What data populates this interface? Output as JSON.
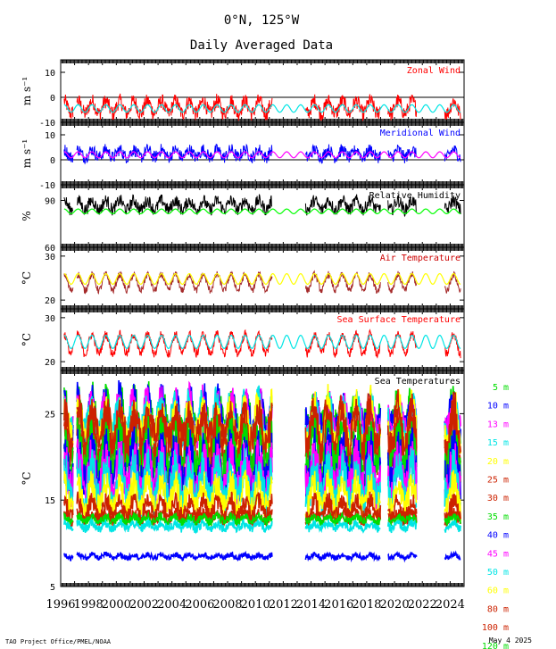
{
  "header": {
    "title": "0°N, 125°W",
    "subtitle": "Daily Averaged Data"
  },
  "footer": {
    "credit": "TAO Project Office/PMEL/NOAA",
    "date": "May  4 2025"
  },
  "chart_data": [
    {
      "type": "line",
      "title": "Zonal Wind",
      "ylabel": "m s⁻¹",
      "yticks": [
        -10,
        0,
        10
      ],
      "ylim": [
        -10,
        15
      ],
      "zero_line": true,
      "series": [
        {
          "color": "#ff0000",
          "role": "observed",
          "base": -4,
          "amp": 2.5,
          "noise": 3
        },
        {
          "color": "#00e5e5",
          "role": "climatology",
          "base": -4.5,
          "amp": 1.5
        }
      ]
    },
    {
      "type": "line",
      "title": "Meridional Wind",
      "ylabel": "m s⁻¹",
      "yticks": [
        -10,
        0,
        10
      ],
      "ylim": [
        -10,
        15
      ],
      "zero_line": true,
      "series": [
        {
          "color": "#0000ff",
          "role": "observed",
          "base": 2.5,
          "amp": 1.5,
          "noise": 2.5
        },
        {
          "color": "#ff00ff",
          "role": "climatology",
          "base": 2,
          "amp": 1.2
        }
      ]
    },
    {
      "type": "line",
      "title": "Relative Humidity",
      "ylabel": "%",
      "yticks": [
        60,
        90
      ],
      "ylim": [
        60,
        100
      ],
      "series": [
        {
          "color": "#000000",
          "role": "observed",
          "base": 87,
          "amp": 3,
          "noise": 4
        },
        {
          "color": "#00ff00",
          "role": "climatology",
          "base": 83,
          "amp": 1.5
        }
      ]
    },
    {
      "type": "line",
      "title": "Air Temperature",
      "ylabel": "°C",
      "yticks": [
        20,
        30
      ],
      "ylim": [
        18,
        32
      ],
      "series": [
        {
          "color": "#a52a2a",
          "role": "observed",
          "base": 24,
          "amp": 1.8,
          "noise": 0.8
        },
        {
          "color": "#ffff00",
          "role": "climatology",
          "base": 24.8,
          "amp": 1.2
        }
      ]
    },
    {
      "type": "line",
      "title": "Sea Surface Temperature",
      "ylabel": "°C",
      "yticks": [
        20,
        30
      ],
      "ylim": [
        18,
        32
      ],
      "series": [
        {
          "color": "#ff0000",
          "role": "observed",
          "base": 24,
          "amp": 2.2,
          "noise": 1
        },
        {
          "color": "#00e5e5",
          "role": "climatology",
          "base": 24.5,
          "amp": 1.5
        }
      ]
    },
    {
      "type": "line",
      "title": "Sea Temperatures",
      "ylabel": "°C",
      "yticks": [
        5,
        15,
        25
      ],
      "ylim": [
        5,
        30
      ],
      "x": {
        "start": 1996,
        "end": 2025,
        "tick_labels": [
          "1996",
          "1998",
          "2000",
          "2002",
          "2004",
          "2006",
          "2008",
          "2010",
          "2012",
          "2014",
          "2016",
          "2018",
          "2020",
          "2022",
          "2024"
        ]
      },
      "legend": {
        "placement": "right"
      },
      "series": [
        {
          "name": "5 m",
          "color": "#00dd00",
          "base": 24.5,
          "amp": 1.8,
          "noise": 1.5
        },
        {
          "name": "10 m",
          "color": "#0000ff",
          "base": 24.3,
          "amp": 1.8,
          "noise": 1.5
        },
        {
          "name": "13 m",
          "color": "#ff00ff",
          "base": 24.0,
          "amp": 1.8,
          "noise": 1.5
        },
        {
          "name": "15 m",
          "color": "#00e5e5",
          "base": 23.8,
          "amp": 1.8,
          "noise": 1.5
        },
        {
          "name": "20 m",
          "color": "#ffff00",
          "base": 23.5,
          "amp": 2.0,
          "noise": 1.6
        },
        {
          "name": "25 m",
          "color": "#cc2200",
          "base": 23.0,
          "amp": 2.0,
          "noise": 1.8
        },
        {
          "name": "30 m",
          "color": "#cc2200",
          "base": 22.0,
          "amp": 2.2,
          "noise": 2.0
        },
        {
          "name": "35 m",
          "color": "#00dd00",
          "base": 20.5,
          "amp": 2.2,
          "noise": 2.2
        },
        {
          "name": "40 m",
          "color": "#0000ff",
          "base": 19.0,
          "amp": 2.2,
          "noise": 2.4
        },
        {
          "name": "45 m",
          "color": "#ff00ff",
          "base": 18.0,
          "amp": 2.0,
          "noise": 2.4
        },
        {
          "name": "50 m",
          "color": "#00e5e5",
          "base": 17.0,
          "amp": 2.0,
          "noise": 2.2
        },
        {
          "name": "60 m",
          "color": "#ffff00",
          "base": 15.5,
          "amp": 1.5,
          "noise": 1.6
        },
        {
          "name": "80 m",
          "color": "#cc2200",
          "base": 14.0,
          "amp": 1.0,
          "noise": 1.0
        },
        {
          "name": "100 m",
          "color": "#cc2200",
          "base": 13.0,
          "amp": 0.5,
          "noise": 0.6
        },
        {
          "name": "120 m",
          "color": "#00dd00",
          "base": 12.8,
          "amp": 0.3,
          "noise": 0.5
        },
        {
          "name": "",
          "color": "#00e5e5",
          "base": 12.0,
          "amp": 0.3,
          "noise": 0.5
        },
        {
          "name": "",
          "color": "#0000ff",
          "base": 8.5,
          "amp": 0.2,
          "noise": 0.3
        }
      ]
    }
  ]
}
